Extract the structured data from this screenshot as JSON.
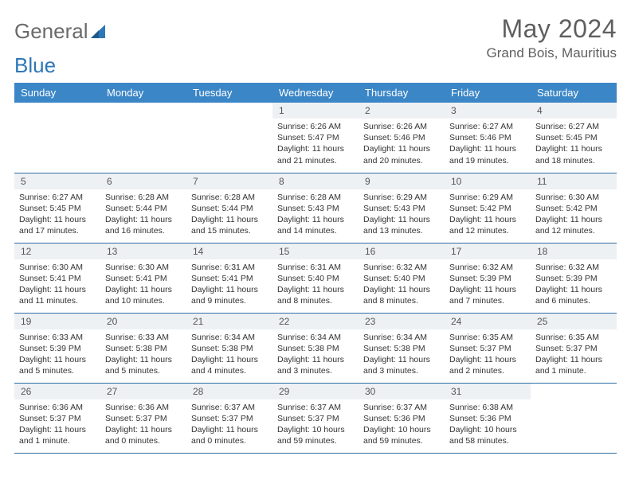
{
  "logo": {
    "word1": "General",
    "word2": "Blue"
  },
  "title": "May 2024",
  "location": "Grand Bois, Mauritius",
  "weekday_header_bg": "#3b86c6",
  "weekdays": [
    "Sunday",
    "Monday",
    "Tuesday",
    "Wednesday",
    "Thursday",
    "Friday",
    "Saturday"
  ],
  "weeks": [
    [
      {
        "n": "",
        "lines": []
      },
      {
        "n": "",
        "lines": []
      },
      {
        "n": "",
        "lines": []
      },
      {
        "n": "1",
        "lines": [
          "Sunrise: 6:26 AM",
          "Sunset: 5:47 PM",
          "Daylight: 11 hours",
          "and 21 minutes."
        ]
      },
      {
        "n": "2",
        "lines": [
          "Sunrise: 6:26 AM",
          "Sunset: 5:46 PM",
          "Daylight: 11 hours",
          "and 20 minutes."
        ]
      },
      {
        "n": "3",
        "lines": [
          "Sunrise: 6:27 AM",
          "Sunset: 5:46 PM",
          "Daylight: 11 hours",
          "and 19 minutes."
        ]
      },
      {
        "n": "4",
        "lines": [
          "Sunrise: 6:27 AM",
          "Sunset: 5:45 PM",
          "Daylight: 11 hours",
          "and 18 minutes."
        ]
      }
    ],
    [
      {
        "n": "5",
        "lines": [
          "Sunrise: 6:27 AM",
          "Sunset: 5:45 PM",
          "Daylight: 11 hours",
          "and 17 minutes."
        ]
      },
      {
        "n": "6",
        "lines": [
          "Sunrise: 6:28 AM",
          "Sunset: 5:44 PM",
          "Daylight: 11 hours",
          "and 16 minutes."
        ]
      },
      {
        "n": "7",
        "lines": [
          "Sunrise: 6:28 AM",
          "Sunset: 5:44 PM",
          "Daylight: 11 hours",
          "and 15 minutes."
        ]
      },
      {
        "n": "8",
        "lines": [
          "Sunrise: 6:28 AM",
          "Sunset: 5:43 PM",
          "Daylight: 11 hours",
          "and 14 minutes."
        ]
      },
      {
        "n": "9",
        "lines": [
          "Sunrise: 6:29 AM",
          "Sunset: 5:43 PM",
          "Daylight: 11 hours",
          "and 13 minutes."
        ]
      },
      {
        "n": "10",
        "lines": [
          "Sunrise: 6:29 AM",
          "Sunset: 5:42 PM",
          "Daylight: 11 hours",
          "and 12 minutes."
        ]
      },
      {
        "n": "11",
        "lines": [
          "Sunrise: 6:30 AM",
          "Sunset: 5:42 PM",
          "Daylight: 11 hours",
          "and 12 minutes."
        ]
      }
    ],
    [
      {
        "n": "12",
        "lines": [
          "Sunrise: 6:30 AM",
          "Sunset: 5:41 PM",
          "Daylight: 11 hours",
          "and 11 minutes."
        ]
      },
      {
        "n": "13",
        "lines": [
          "Sunrise: 6:30 AM",
          "Sunset: 5:41 PM",
          "Daylight: 11 hours",
          "and 10 minutes."
        ]
      },
      {
        "n": "14",
        "lines": [
          "Sunrise: 6:31 AM",
          "Sunset: 5:41 PM",
          "Daylight: 11 hours",
          "and 9 minutes."
        ]
      },
      {
        "n": "15",
        "lines": [
          "Sunrise: 6:31 AM",
          "Sunset: 5:40 PM",
          "Daylight: 11 hours",
          "and 8 minutes."
        ]
      },
      {
        "n": "16",
        "lines": [
          "Sunrise: 6:32 AM",
          "Sunset: 5:40 PM",
          "Daylight: 11 hours",
          "and 8 minutes."
        ]
      },
      {
        "n": "17",
        "lines": [
          "Sunrise: 6:32 AM",
          "Sunset: 5:39 PM",
          "Daylight: 11 hours",
          "and 7 minutes."
        ]
      },
      {
        "n": "18",
        "lines": [
          "Sunrise: 6:32 AM",
          "Sunset: 5:39 PM",
          "Daylight: 11 hours",
          "and 6 minutes."
        ]
      }
    ],
    [
      {
        "n": "19",
        "lines": [
          "Sunrise: 6:33 AM",
          "Sunset: 5:39 PM",
          "Daylight: 11 hours",
          "and 5 minutes."
        ]
      },
      {
        "n": "20",
        "lines": [
          "Sunrise: 6:33 AM",
          "Sunset: 5:38 PM",
          "Daylight: 11 hours",
          "and 5 minutes."
        ]
      },
      {
        "n": "21",
        "lines": [
          "Sunrise: 6:34 AM",
          "Sunset: 5:38 PM",
          "Daylight: 11 hours",
          "and 4 minutes."
        ]
      },
      {
        "n": "22",
        "lines": [
          "Sunrise: 6:34 AM",
          "Sunset: 5:38 PM",
          "Daylight: 11 hours",
          "and 3 minutes."
        ]
      },
      {
        "n": "23",
        "lines": [
          "Sunrise: 6:34 AM",
          "Sunset: 5:38 PM",
          "Daylight: 11 hours",
          "and 3 minutes."
        ]
      },
      {
        "n": "24",
        "lines": [
          "Sunrise: 6:35 AM",
          "Sunset: 5:37 PM",
          "Daylight: 11 hours",
          "and 2 minutes."
        ]
      },
      {
        "n": "25",
        "lines": [
          "Sunrise: 6:35 AM",
          "Sunset: 5:37 PM",
          "Daylight: 11 hours",
          "and 1 minute."
        ]
      }
    ],
    [
      {
        "n": "26",
        "lines": [
          "Sunrise: 6:36 AM",
          "Sunset: 5:37 PM",
          "Daylight: 11 hours",
          "and 1 minute."
        ]
      },
      {
        "n": "27",
        "lines": [
          "Sunrise: 6:36 AM",
          "Sunset: 5:37 PM",
          "Daylight: 11 hours",
          "and 0 minutes."
        ]
      },
      {
        "n": "28",
        "lines": [
          "Sunrise: 6:37 AM",
          "Sunset: 5:37 PM",
          "Daylight: 11 hours",
          "and 0 minutes."
        ]
      },
      {
        "n": "29",
        "lines": [
          "Sunrise: 6:37 AM",
          "Sunset: 5:37 PM",
          "Daylight: 10 hours",
          "and 59 minutes."
        ]
      },
      {
        "n": "30",
        "lines": [
          "Sunrise: 6:37 AM",
          "Sunset: 5:36 PM",
          "Daylight: 10 hours",
          "and 59 minutes."
        ]
      },
      {
        "n": "31",
        "lines": [
          "Sunrise: 6:38 AM",
          "Sunset: 5:36 PM",
          "Daylight: 10 hours",
          "and 58 minutes."
        ]
      },
      {
        "n": "",
        "lines": []
      }
    ]
  ]
}
